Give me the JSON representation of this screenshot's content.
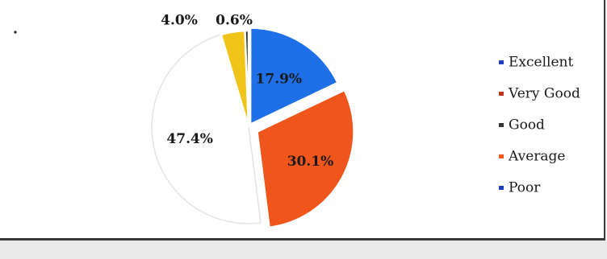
{
  "chart_data": {
    "type": "pie",
    "title": "",
    "series": [
      {
        "name": "Excellent",
        "value": 17.9,
        "label": "17.9%",
        "color": "#1f6fe8"
      },
      {
        "name": "Very Good",
        "value": 30.1,
        "label": "30.1%",
        "color": "#f0561c"
      },
      {
        "name": "Good",
        "value": 47.4,
        "label": "47.4%",
        "color": "#ffffff"
      },
      {
        "name": "Average",
        "value": 4.0,
        "label": "4.0%",
        "color": "#f0c419"
      },
      {
        "name": "Poor",
        "value": 0.6,
        "label": "0.6%",
        "color": "#2a2a2a"
      }
    ],
    "legend": {
      "position": "right",
      "items": [
        {
          "name": "Excellent",
          "color": "#1f3fbf"
        },
        {
          "name": "Very Good",
          "color": "#c0341c"
        },
        {
          "name": "Good",
          "color": "#333333"
        },
        {
          "name": "Average",
          "color": "#f0561c"
        },
        {
          "name": "Poor",
          "color": "#1f3fbf"
        }
      ]
    }
  }
}
